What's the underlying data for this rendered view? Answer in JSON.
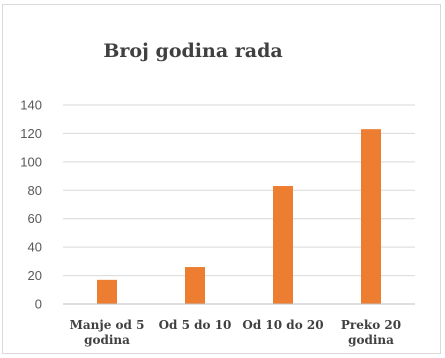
{
  "chart_data": {
    "type": "bar",
    "title": "Broj godina rada",
    "categories": [
      [
        "Manje od 5",
        "godina"
      ],
      [
        "Od 5 do 10"
      ],
      [
        "Od 10 do 20"
      ],
      [
        "Preko 20",
        "godina"
      ]
    ],
    "values": [
      17,
      26,
      83,
      123
    ],
    "ylim": [
      0,
      140
    ],
    "yticks": [
      0,
      20,
      40,
      60,
      80,
      100,
      120,
      140
    ],
    "grid": true,
    "legend": "none",
    "bar_color": "#ED7D31"
  }
}
